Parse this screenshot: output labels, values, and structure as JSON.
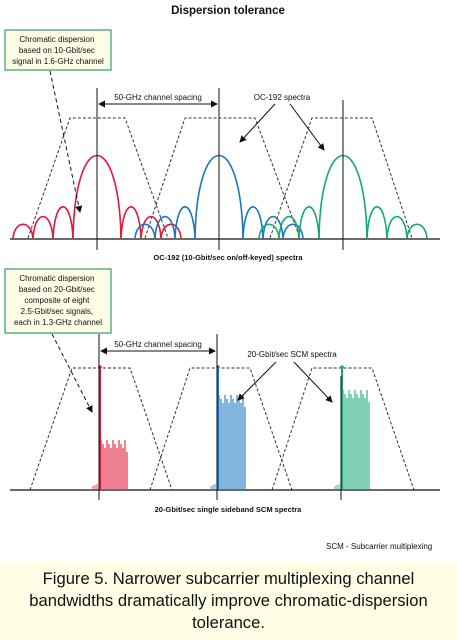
{
  "title": "Dispersion tolerance",
  "top_panel": {
    "callout": [
      "Chromatic dispersion",
      "based on 10-Gbit/sec",
      "signal in 1.6-GHz channel"
    ],
    "spacing_label": "50-GHz channel spacing",
    "spectra_label": "OC-192 spectra",
    "axis_label": "OC-192 (10-Gbit/sec on/off-keyed) spectra",
    "series": [
      {
        "name": "channel-1",
        "color": "#e0183a"
      },
      {
        "name": "channel-2",
        "color": "#1a78c2"
      },
      {
        "name": "channel-3",
        "color": "#16a87a"
      }
    ]
  },
  "bottom_panel": {
    "callout": [
      "Chromatic dispersion",
      "based on 20-Gbit/sec",
      "composite of eight",
      "2.5-Gbit/sec signals,",
      "each in 1.3-GHz channel"
    ],
    "spacing_label": "50-GHz channel spacing",
    "spectra_label": "20-Gbit/sec SCM spectra",
    "axis_label": "20-Gbit/sec single sideband SCM spectra",
    "series": [
      {
        "name": "channel-1",
        "color": "#e0183a"
      },
      {
        "name": "channel-2",
        "color": "#1a78c2"
      },
      {
        "name": "channel-3",
        "color": "#16a87a"
      }
    ]
  },
  "legend_note": "SCM - Subcarrier multiplexing",
  "caption": "Figure 5. Narrower subcarrier multiplexing channel bandwidths dramatically improve chromatic-dispersion tolerance.",
  "colors": {
    "callout_border": "#2f9e6e",
    "callout_fill": "#fefde6",
    "caption_bg": "#fefde6"
  }
}
